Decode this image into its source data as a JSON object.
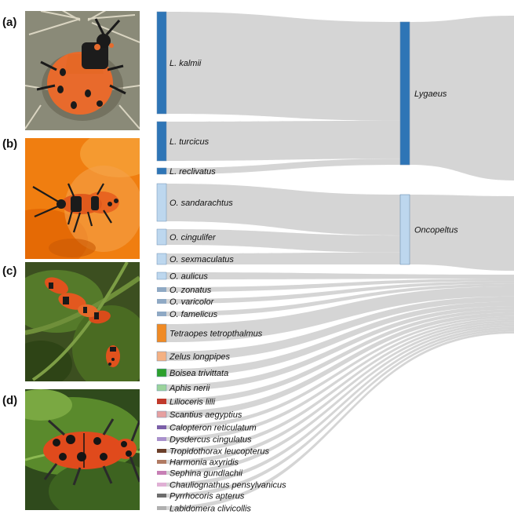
{
  "panels": [
    {
      "label": "(a)",
      "photo_icon": "milkweed-bug-on-flower-photo"
    },
    {
      "label": "(b)",
      "photo_icon": "milkweed-bugs-on-orange-flower-photo"
    },
    {
      "label": "(c)",
      "photo_icon": "milkweed-beetles-on-leaves-photo"
    },
    {
      "label": "(d)",
      "photo_icon": "red-milkweed-beetle-photo"
    }
  ],
  "sankey": {
    "sources": [
      {
        "name": "L. kalmii",
        "color": "#2e75b6",
        "target": 0
      },
      {
        "name": "L. turcicus",
        "color": "#2e75b6",
        "target": 0
      },
      {
        "name": "L. reclivatus",
        "color": "#2e75b6",
        "target": 0
      },
      {
        "name": "O. sandarachtus",
        "color": "#bdd7ee",
        "target": 1
      },
      {
        "name": "O. cingulifer",
        "color": "#bdd7ee",
        "target": 1
      },
      {
        "name": "O. sexmaculatus",
        "color": "#bdd7ee",
        "target": 1
      },
      {
        "name": "O. aulicus",
        "color": "#bdd7ee",
        "target": 2
      },
      {
        "name": "O. zonatus",
        "color": "#8fa9c4",
        "target": 2
      },
      {
        "name": "O. varicolor",
        "color": "#8fa9c4",
        "target": 2
      },
      {
        "name": "O. famelicus",
        "color": "#8fa9c4",
        "target": 2
      },
      {
        "name": "Tetraopes tetropthalmus",
        "color": "#f08a24",
        "target": 2
      },
      {
        "name": "Zelus longpipes",
        "color": "#f4b183",
        "target": 2
      },
      {
        "name": "Boisea trivittata",
        "color": "#2ca02c",
        "target": 2
      },
      {
        "name": "Aphis nerii",
        "color": "#9bd39b",
        "target": 2
      },
      {
        "name": "Lilioceris lilli",
        "color": "#c0392b",
        "target": 2
      },
      {
        "name": "Scantius aegyptius",
        "color": "#e6a0a0",
        "target": 2
      },
      {
        "name": "Calopteron reticulatum",
        "color": "#7b5fa8",
        "target": 2
      },
      {
        "name": "Dysdercus cingulatus",
        "color": "#a991cc",
        "target": 2
      },
      {
        "name": "Tropidothorax leucopterus",
        "color": "#6b3f2a",
        "target": 2
      },
      {
        "name": "Harmonia axyridis",
        "color": "#b07a62",
        "target": 2
      },
      {
        "name": "Sephina gundlachii",
        "color": "#c77fb5",
        "target": 2
      },
      {
        "name": "Chauliognathus pensylvanicus",
        "color": "#e0b0d5",
        "target": 2
      },
      {
        "name": "Pyrrhocoris apterus",
        "color": "#6d6d6d",
        "target": 2
      },
      {
        "name": "Labidomera clivicollis",
        "color": "#b0b0b0",
        "target": 2
      }
    ],
    "targets": [
      {
        "name": "Lygaeus",
        "color": "#2e75b6"
      },
      {
        "name": "Oncopeltus",
        "color": "#bdd7ee"
      },
      {
        "name": "",
        "color": "#bdd7ee"
      }
    ],
    "link_color": "#d3d3d3"
  }
}
